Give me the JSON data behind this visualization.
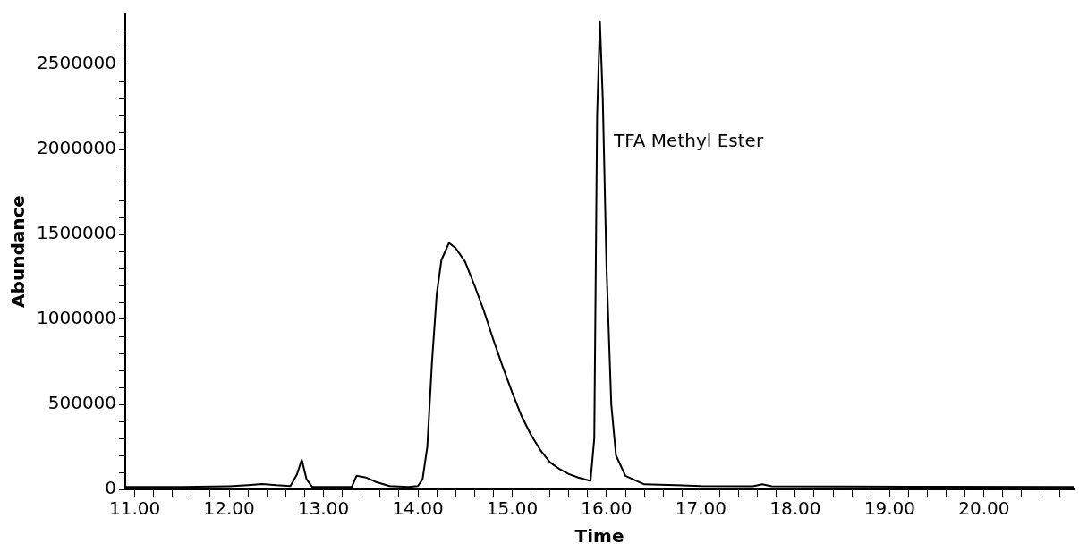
{
  "chart_data": {
    "type": "line",
    "xlabel": "Time",
    "ylabel": "Abundance",
    "annotations": [
      "TFA Methyl Ester"
    ],
    "xlim": [
      10.9,
      20.95
    ],
    "ylim": [
      0,
      2800000
    ],
    "xticks": [
      {
        "value": 11,
        "label": "11.00"
      },
      {
        "value": 11.2,
        "label": null
      },
      {
        "value": 11.4,
        "label": null
      },
      {
        "value": 11.6,
        "label": null
      },
      {
        "value": 11.8,
        "label": null
      },
      {
        "value": 12,
        "label": "12.00"
      },
      {
        "value": 12.2,
        "label": null
      },
      {
        "value": 12.4,
        "label": null
      },
      {
        "value": 12.6,
        "label": null
      },
      {
        "value": 12.8,
        "label": null
      },
      {
        "value": 13,
        "label": "13.00"
      },
      {
        "value": 13.2,
        "label": null
      },
      {
        "value": 13.4,
        "label": null
      },
      {
        "value": 13.6,
        "label": null
      },
      {
        "value": 13.8,
        "label": null
      },
      {
        "value": 14,
        "label": "14.00"
      },
      {
        "value": 14.2,
        "label": null
      },
      {
        "value": 14.4,
        "label": null
      },
      {
        "value": 14.6,
        "label": null
      },
      {
        "value": 14.8,
        "label": null
      },
      {
        "value": 15,
        "label": "15.00"
      },
      {
        "value": 15.2,
        "label": null
      },
      {
        "value": 15.4,
        "label": null
      },
      {
        "value": 15.6,
        "label": null
      },
      {
        "value": 15.8,
        "label": null
      },
      {
        "value": 16,
        "label": "16.00"
      },
      {
        "value": 16.2,
        "label": null
      },
      {
        "value": 16.4,
        "label": null
      },
      {
        "value": 16.6,
        "label": null
      },
      {
        "value": 16.8,
        "label": null
      },
      {
        "value": 17,
        "label": "17.00"
      },
      {
        "value": 17.2,
        "label": null
      },
      {
        "value": 17.4,
        "label": null
      },
      {
        "value": 17.6,
        "label": null
      },
      {
        "value": 17.8,
        "label": null
      },
      {
        "value": 18,
        "label": "18.00"
      },
      {
        "value": 18.2,
        "label": null
      },
      {
        "value": 18.4,
        "label": null
      },
      {
        "value": 18.6,
        "label": null
      },
      {
        "value": 18.8,
        "label": null
      },
      {
        "value": 19,
        "label": "19.00"
      },
      {
        "value": 19.2,
        "label": null
      },
      {
        "value": 19.4,
        "label": null
      },
      {
        "value": 19.6,
        "label": null
      },
      {
        "value": 19.8,
        "label": null
      },
      {
        "value": 20,
        "label": "20.00"
      },
      {
        "value": 20.2,
        "label": null
      },
      {
        "value": 20.4,
        "label": null
      },
      {
        "value": 20.6,
        "label": null
      },
      {
        "value": 20.8,
        "label": null
      }
    ],
    "yticks": [
      0,
      {
        "value": 100000,
        "label": null
      },
      {
        "value": 200000,
        "label": null
      },
      {
        "value": 300000,
        "label": null
      },
      {
        "value": 400000,
        "label": null
      },
      500000,
      {
        "value": 600000,
        "label": null
      },
      {
        "value": 700000,
        "label": null
      },
      {
        "value": 800000,
        "label": null
      },
      {
        "value": 900000,
        "label": null
      },
      1000000,
      {
        "value": 1100000,
        "label": null
      },
      {
        "value": 1200000,
        "label": null
      },
      {
        "value": 1300000,
        "label": null
      },
      {
        "value": 1400000,
        "label": null
      },
      1500000,
      {
        "value": 1600000,
        "label": null
      },
      {
        "value": 1700000,
        "label": null
      },
      {
        "value": 1800000,
        "label": null
      },
      {
        "value": 1900000,
        "label": null
      },
      2000000,
      {
        "value": 2100000,
        "label": null
      },
      {
        "value": 2200000,
        "label": null
      },
      {
        "value": 2300000,
        "label": null
      },
      {
        "value": 2400000,
        "label": null
      },
      2500000,
      {
        "value": 2600000,
        "label": null
      },
      {
        "value": 2700000,
        "label": null
      }
    ],
    "marker": "none",
    "line_style": "solid",
    "x": [
      10.9,
      11.5,
      12.0,
      12.2,
      12.35,
      12.5,
      12.65,
      12.72,
      12.77,
      12.82,
      12.88,
      13.0,
      13.3,
      13.35,
      13.45,
      13.55,
      13.7,
      13.9,
      14.0,
      14.05,
      14.1,
      14.15,
      14.2,
      14.25,
      14.33,
      14.4,
      14.5,
      14.6,
      14.7,
      14.8,
      14.9,
      15.0,
      15.1,
      15.2,
      15.3,
      15.4,
      15.5,
      15.6,
      15.7,
      15.83,
      15.87,
      15.9,
      15.93,
      15.96,
      16.0,
      16.05,
      16.1,
      16.2,
      16.4,
      17.0,
      17.55,
      17.65,
      17.75,
      18.5,
      19.5,
      20.95
    ],
    "series": [
      {
        "color": "#000000",
        "values": [
          15000,
          15000,
          18000,
          25000,
          32000,
          25000,
          20000,
          90000,
          175000,
          60000,
          15000,
          15000,
          15000,
          80000,
          70000,
          45000,
          20000,
          15000,
          20000,
          60000,
          250000,
          750000,
          1150000,
          1350000,
          1450000,
          1420000,
          1340000,
          1200000,
          1050000,
          880000,
          720000,
          570000,
          430000,
          320000,
          230000,
          160000,
          120000,
          90000,
          70000,
          50000,
          300000,
          2200000,
          2750000,
          2300000,
          1300000,
          500000,
          200000,
          80000,
          30000,
          20000,
          18000,
          30000,
          18000,
          17000,
          16000,
          15000
        ]
      }
    ]
  }
}
